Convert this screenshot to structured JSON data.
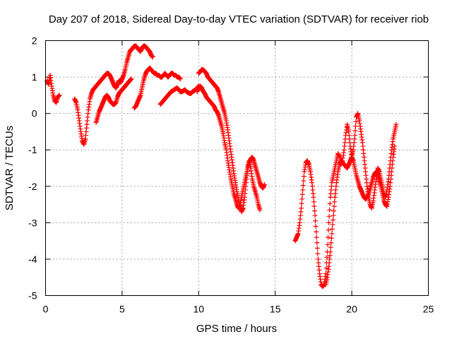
{
  "chart_data": {
    "type": "scatter",
    "title": "Day 207 of 2018, Sidereal Day-to-day VTEC variation (SDTVAR) for receiver riob",
    "xlabel": "GPS time / hours",
    "ylabel": "SDTVAR / TECUs",
    "xlim": [
      0,
      25
    ],
    "ylim": [
      -5,
      2
    ],
    "xticks": [
      0,
      5,
      10,
      15,
      20,
      25
    ],
    "yticks": [
      -5,
      -4,
      -3,
      -2,
      -1,
      0,
      1,
      2
    ],
    "grid": true,
    "marker": "+",
    "color": "#ff0000",
    "series": [
      {
        "name": "seg1",
        "x": [
          0.1,
          0.2,
          0.3,
          0.4,
          0.5,
          0.6,
          0.7,
          0.8,
          0.9
        ],
        "y": [
          0.9,
          0.8,
          1.05,
          0.75,
          0.5,
          0.35,
          0.3,
          0.45,
          0.5
        ]
      },
      {
        "name": "seg2",
        "x": [
          1.9,
          2.0,
          2.1,
          2.2,
          2.3,
          2.4,
          2.5,
          2.6,
          2.7,
          2.8,
          2.9,
          3.0,
          3.1,
          3.2,
          3.3,
          3.4,
          3.5,
          3.6,
          3.7,
          3.8,
          3.9,
          4.0,
          4.1,
          4.2,
          4.3,
          4.4,
          4.5,
          4.6,
          4.7,
          4.8,
          4.9,
          5.0,
          5.1,
          5.2,
          5.3,
          5.4,
          5.5,
          5.6,
          5.7,
          5.8,
          5.9,
          6.0,
          6.1,
          6.2,
          6.3,
          6.4,
          6.5,
          6.6,
          6.7,
          6.8,
          6.9,
          7.0
        ],
        "y": [
          0.4,
          0.3,
          0.1,
          -0.2,
          -0.5,
          -0.75,
          -0.85,
          -0.7,
          -0.3,
          0.1,
          0.4,
          0.55,
          0.65,
          0.7,
          0.75,
          0.8,
          0.85,
          0.9,
          0.95,
          1.0,
          1.05,
          1.1,
          1.1,
          1.05,
          0.95,
          0.85,
          0.75,
          0.7,
          0.8,
          0.9,
          0.85,
          0.95,
          1.05,
          1.2,
          1.4,
          1.55,
          1.7,
          1.75,
          1.8,
          1.85,
          1.85,
          1.8,
          1.75,
          1.7,
          1.8,
          1.85,
          1.85,
          1.8,
          1.75,
          1.7,
          1.6,
          1.55
        ]
      },
      {
        "name": "seg3",
        "x": [
          3.3,
          3.4,
          3.5,
          3.6,
          3.7,
          3.8,
          3.9,
          4.0,
          4.1,
          4.2,
          4.3,
          4.4,
          4.5,
          4.6,
          4.7,
          4.8,
          4.9,
          5.0,
          5.1,
          5.2,
          5.3,
          5.4,
          5.5,
          5.6
        ],
        "y": [
          -0.25,
          -0.1,
          0.05,
          0.15,
          0.25,
          0.35,
          0.45,
          0.5,
          0.45,
          0.35,
          0.3,
          0.25,
          0.25,
          0.3,
          0.45,
          0.55,
          0.6,
          0.65,
          0.7,
          0.75,
          0.8,
          0.85,
          0.9,
          0.95
        ]
      },
      {
        "name": "seg4",
        "x": [
          5.8,
          5.9,
          6.0,
          6.1,
          6.2,
          6.3,
          6.4,
          6.5,
          6.6,
          6.7,
          6.8,
          6.9,
          7.0,
          7.1,
          7.2,
          7.3,
          7.4,
          7.5,
          7.6,
          7.7,
          7.8,
          7.9,
          8.0,
          8.1,
          8.2,
          8.3,
          8.4,
          8.5,
          8.6,
          8.7,
          8.8
        ],
        "y": [
          0.15,
          0.2,
          0.3,
          0.4,
          0.5,
          0.7,
          0.9,
          1.05,
          1.15,
          1.2,
          1.25,
          1.2,
          1.15,
          1.1,
          1.1,
          1.05,
          1.05,
          1.0,
          1.0,
          1.05,
          1.1,
          1.05,
          1.0,
          1.05,
          1.1,
          1.1,
          1.05,
          1.05,
          1.0,
          1.0,
          0.95
        ]
      },
      {
        "name": "seg5",
        "x": [
          7.5,
          7.6,
          7.7,
          7.8,
          7.9,
          8.0,
          8.1,
          8.2,
          8.3,
          8.4,
          8.5,
          8.6,
          8.7,
          8.8,
          8.9,
          9.0,
          9.1,
          9.2,
          9.3,
          9.4,
          9.5,
          9.6,
          9.7,
          9.8,
          9.9,
          10.0
        ],
        "y": [
          0.25,
          0.3,
          0.35,
          0.4,
          0.45,
          0.5,
          0.55,
          0.6,
          0.62,
          0.65,
          0.68,
          0.7,
          0.65,
          0.6,
          0.6,
          0.62,
          0.65,
          0.6,
          0.58,
          0.55,
          0.55,
          0.6,
          0.62,
          0.65,
          0.7,
          0.75
        ]
      },
      {
        "name": "seg6",
        "x": [
          10.0,
          10.1,
          10.2,
          10.3,
          10.4,
          10.5,
          10.6,
          10.7,
          10.8,
          10.9,
          11.0,
          11.1,
          11.2,
          11.3,
          11.4,
          11.5,
          11.6,
          11.7,
          11.8,
          11.9,
          12.0,
          12.1,
          12.2,
          12.3,
          12.4,
          12.5,
          12.6,
          12.7,
          12.8,
          12.9,
          13.0,
          13.1,
          13.2,
          13.3,
          13.4,
          13.5,
          13.6,
          13.7,
          13.8,
          13.9,
          14.0
        ],
        "y": [
          1.1,
          1.15,
          1.2,
          1.2,
          1.15,
          1.1,
          1.0,
          0.95,
          0.9,
          0.85,
          0.8,
          0.75,
          0.7,
          0.6,
          0.45,
          0.3,
          0.15,
          0.0,
          -0.2,
          -0.45,
          -0.75,
          -1.05,
          -1.35,
          -1.65,
          -1.9,
          -2.15,
          -2.35,
          -2.55,
          -2.7,
          -2.6,
          -2.3,
          -1.9,
          -1.5,
          -1.3,
          -1.5,
          -1.8,
          -2.0,
          -2.15,
          -2.3,
          -2.5,
          -2.65
        ]
      },
      {
        "name": "seg7",
        "x": [
          9.9,
          10.0,
          10.1,
          10.2,
          10.3,
          10.4,
          10.5,
          10.6,
          10.7,
          10.8,
          10.9,
          11.0,
          11.1,
          11.2,
          11.3,
          11.4,
          11.5,
          11.6,
          11.7,
          11.8,
          11.9,
          12.0,
          12.1,
          12.2,
          12.3,
          12.4,
          12.5,
          12.6,
          12.7,
          12.8,
          12.9,
          13.0,
          13.1,
          13.2,
          13.3,
          13.4,
          13.5,
          13.6,
          13.7,
          13.8,
          13.9,
          14.0,
          14.1,
          14.2,
          14.3
        ],
        "y": [
          0.6,
          0.7,
          0.75,
          0.7,
          0.6,
          0.55,
          0.45,
          0.4,
          0.35,
          0.3,
          0.25,
          0.2,
          0.1,
          0.05,
          -0.05,
          -0.2,
          -0.35,
          -0.55,
          -0.8,
          -1.0,
          -1.3,
          -1.55,
          -1.8,
          -2.0,
          -2.2,
          -2.35,
          -2.5,
          -2.6,
          -2.5,
          -2.3,
          -2.1,
          -1.9,
          -1.7,
          -1.5,
          -1.35,
          -1.25,
          -1.2,
          -1.3,
          -1.45,
          -1.6,
          -1.75,
          -1.9,
          -2.0,
          -2.05,
          -1.95
        ]
      },
      {
        "name": "seg8",
        "x": [
          16.3,
          16.4,
          16.5,
          16.6,
          16.7,
          16.8,
          16.9,
          17.0,
          17.1,
          17.2,
          17.3,
          17.4,
          17.5,
          17.6,
          17.7,
          17.8,
          17.9,
          18.0,
          18.1,
          18.2,
          18.3,
          18.4,
          18.5,
          18.6,
          18.7,
          18.8,
          18.9,
          19.0,
          19.1,
          19.2,
          19.3,
          19.4,
          19.5,
          19.6,
          19.7,
          19.8,
          19.9,
          20.0,
          20.1,
          20.2,
          20.3,
          20.4,
          20.5,
          20.6,
          20.7,
          20.8,
          20.9,
          21.0,
          21.1,
          21.2,
          21.3,
          21.4,
          21.5,
          21.6,
          21.7,
          21.8,
          21.9,
          22.0,
          22.1,
          22.2,
          22.3,
          22.4,
          22.5,
          22.6,
          22.7,
          22.8,
          22.9
        ],
        "y": [
          -3.5,
          -3.4,
          -3.3,
          -3.0,
          -2.6,
          -2.1,
          -1.6,
          -1.35,
          -1.3,
          -1.4,
          -1.6,
          -1.9,
          -2.3,
          -2.8,
          -3.4,
          -4.0,
          -4.4,
          -4.7,
          -4.75,
          -4.7,
          -4.4,
          -3.8,
          -3.0,
          -2.3,
          -1.9,
          -1.7,
          -1.5,
          -1.3,
          -1.1,
          -1.2,
          -1.4,
          -1.3,
          -1.0,
          -0.6,
          -0.3,
          -0.5,
          -0.9,
          -1.2,
          -1.0,
          -0.6,
          -0.1,
          0.0,
          -0.2,
          -0.5,
          -0.8,
          -1.2,
          -1.6,
          -2.0,
          -2.3,
          -2.5,
          -2.6,
          -2.4,
          -2.1,
          -1.8,
          -1.5,
          -1.6,
          -1.8,
          -2.0,
          -2.2,
          -2.3,
          -2.1,
          -1.8,
          -1.4,
          -1.0,
          -0.7,
          -0.5,
          -0.3
        ]
      },
      {
        "name": "seg9",
        "x": [
          18.3,
          18.4,
          18.5,
          18.6,
          18.7,
          18.8,
          18.9,
          19.0,
          19.1,
          19.2,
          19.3,
          19.4,
          19.5,
          19.6,
          19.7,
          19.8,
          19.9,
          20.0,
          20.1,
          20.2,
          20.3,
          20.4,
          20.5,
          20.6,
          20.7,
          20.8,
          20.9,
          21.0,
          21.1,
          21.2,
          21.3,
          21.4,
          21.5,
          21.6,
          21.7,
          21.8,
          21.9,
          22.0,
          22.1,
          22.2,
          22.3,
          22.4,
          22.5,
          22.6,
          22.7,
          22.8
        ],
        "y": [
          -4.7,
          -4.5,
          -4.2,
          -3.8,
          -3.3,
          -2.8,
          -2.3,
          -1.9,
          -1.6,
          -1.4,
          -1.3,
          -1.35,
          -1.4,
          -1.45,
          -1.5,
          -1.4,
          -1.3,
          -1.2,
          -1.3,
          -1.5,
          -1.7,
          -1.85,
          -2.0,
          -2.1,
          -2.2,
          -2.3,
          -2.35,
          -2.3,
          -2.2,
          -2.05,
          -1.9,
          -1.75,
          -1.65,
          -1.6,
          -1.7,
          -1.85,
          -2.0,
          -2.2,
          -2.4,
          -2.5,
          -2.55,
          -2.3,
          -2.0,
          -1.6,
          -1.2,
          -0.9
        ]
      }
    ]
  }
}
